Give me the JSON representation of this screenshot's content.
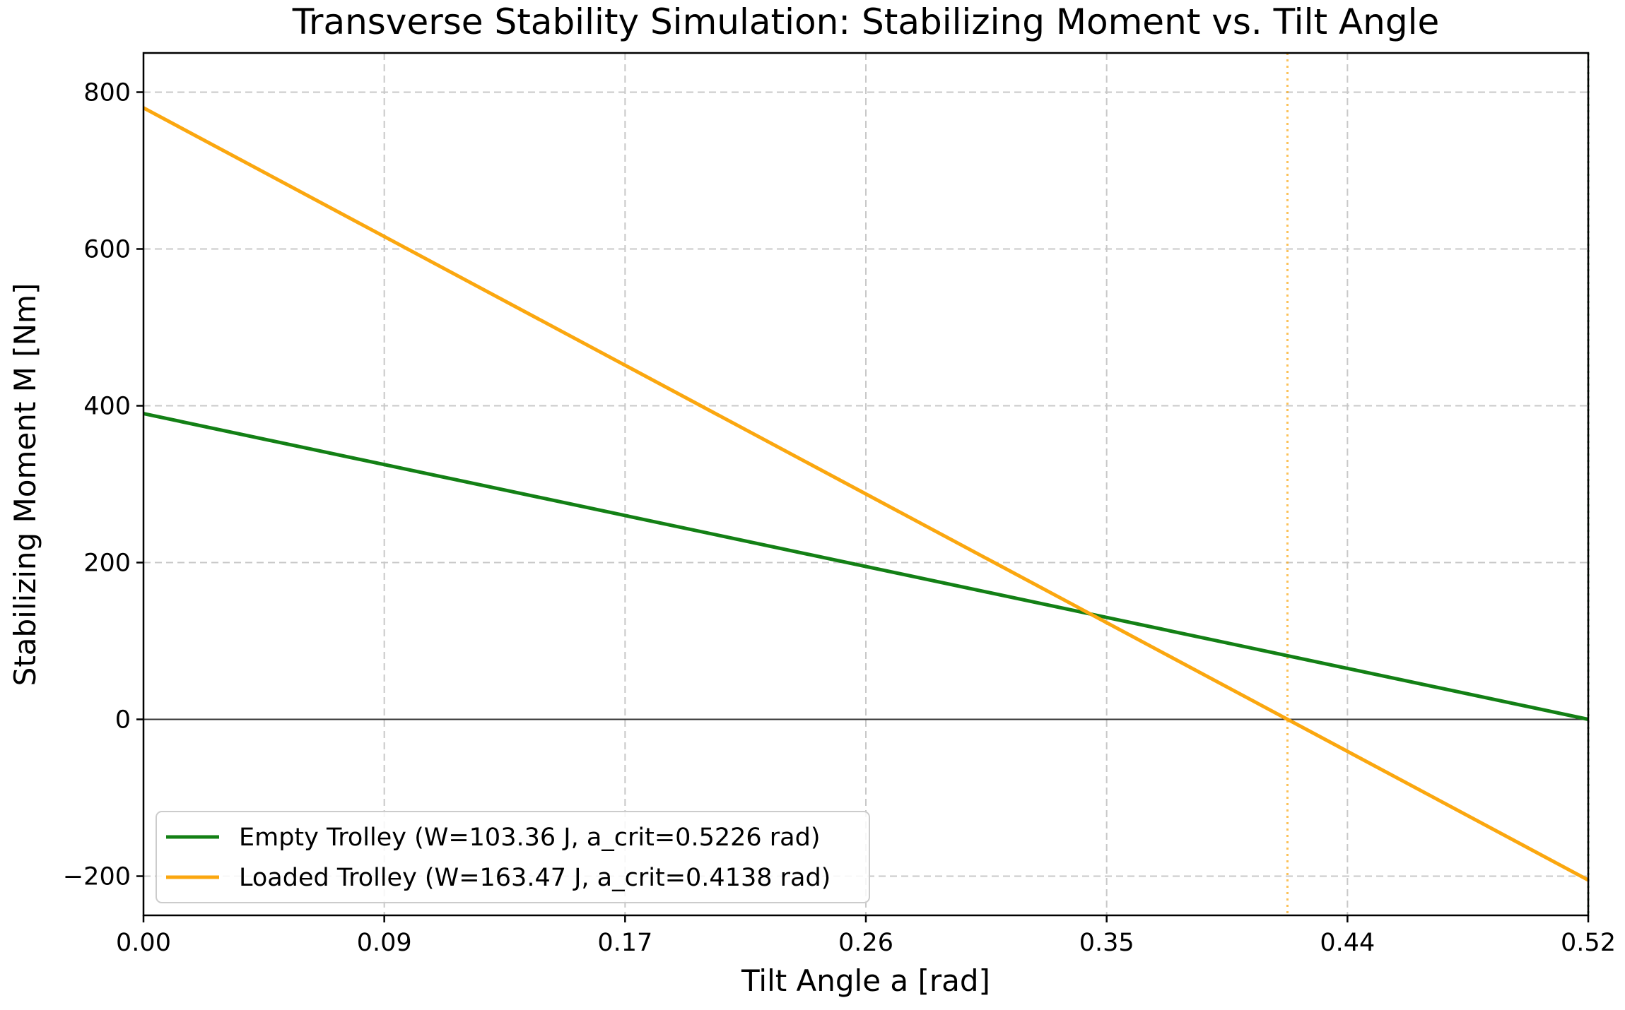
{
  "chart_data": {
    "type": "line",
    "title": "Transverse Stability Simulation: Stabilizing Moment vs. Tilt Angle",
    "xlabel": "Tilt Angle a [rad]",
    "ylabel": "Stabilizing Moment M [Nm]",
    "xlim": [
      0,
      0.5226
    ],
    "ylim": [
      -250,
      850
    ],
    "xticks": [
      0,
      0.0871,
      0.1742,
      0.2613,
      0.3484,
      0.4355,
      0.5226
    ],
    "xtick_labels": [
      "0.00",
      "0.09",
      "0.17",
      "0.26",
      "0.35",
      "0.44",
      "0.52"
    ],
    "yticks": [
      -200,
      0,
      200,
      400,
      600,
      800
    ],
    "ytick_labels": [
      "−200",
      "0",
      "200",
      "400",
      "600",
      "800"
    ],
    "grid": true,
    "legend_position": "lower-left",
    "series": [
      {
        "name": "Empty Trolley (W=103.36 J, a_crit=0.5226 rad)",
        "color": "#138015",
        "x": [
          0,
          0.5226
        ],
        "y": [
          390,
          0
        ],
        "critical_angle": 0.5226
      },
      {
        "name": "Loaded Trolley (W=163.47 J, a_crit=0.4138 rad)",
        "color": "#fba70f",
        "x": [
          0,
          0.5226
        ],
        "y": [
          780,
          -205
        ],
        "critical_angle": 0.4138
      }
    ]
  }
}
